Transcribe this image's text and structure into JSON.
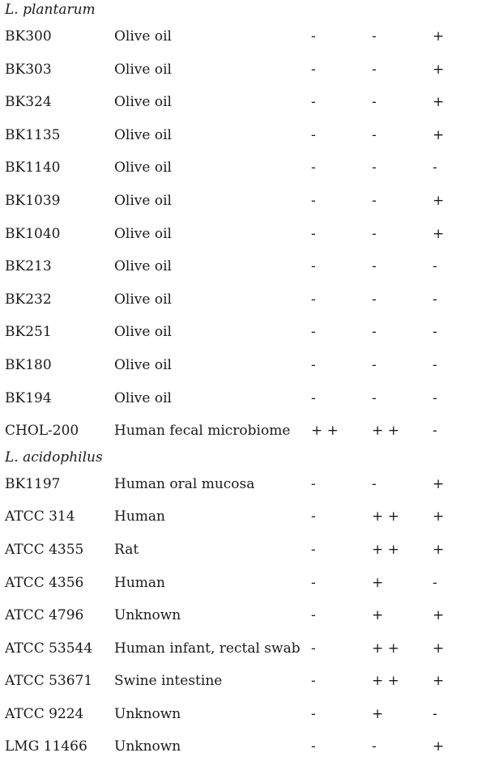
{
  "groups": [
    {
      "name": "L. plantarum",
      "rows": [
        {
          "strain": "BK300",
          "source": "Olive oil",
          "a": "-",
          "b": "-",
          "c": "+"
        },
        {
          "strain": "BK303",
          "source": "Olive oil",
          "a": "-",
          "b": "-",
          "c": "+"
        },
        {
          "strain": "BK324",
          "source": "Olive oil",
          "a": "-",
          "b": "-",
          "c": "+"
        },
        {
          "strain": "BK1135",
          "source": "Olive oil",
          "a": "-",
          "b": "-",
          "c": "+"
        },
        {
          "strain": "BK1140",
          "source": "Olive oil",
          "a": "-",
          "b": "-",
          "c": "-"
        },
        {
          "strain": "BK1039",
          "source": "Olive oil",
          "a": "-",
          "b": "-",
          "c": "+"
        },
        {
          "strain": "BK1040",
          "source": "Olive oil",
          "a": "-",
          "b": "-",
          "c": "+"
        },
        {
          "strain": "BK213",
          "source": "Olive oil",
          "a": "-",
          "b": "-",
          "c": "-"
        },
        {
          "strain": "BK232",
          "source": "Olive oil",
          "a": "-",
          "b": "-",
          "c": "-"
        },
        {
          "strain": "BK251",
          "source": "Olive oil",
          "a": "-",
          "b": "-",
          "c": "-"
        },
        {
          "strain": "BK180",
          "source": "Olive oil",
          "a": "-",
          "b": "-",
          "c": "-"
        },
        {
          "strain": "BK194",
          "source": "Olive oil",
          "a": "-",
          "b": "-",
          "c": "-"
        },
        {
          "strain": "CHOL-200",
          "source": "Human fecal microbiome",
          "a": "+ +",
          "b": "+ +",
          "c": "-"
        }
      ]
    },
    {
      "name": "L. acidophilus",
      "rows": [
        {
          "strain": "BK1197",
          "source": "Human oral mucosa",
          "a": "-",
          "b": "-",
          "c": "+"
        },
        {
          "strain": "ATCC 314",
          "source": "Human",
          "a": "-",
          "b": "+ +",
          "c": "+"
        },
        {
          "strain": "ATCC 4355",
          "source": "Rat",
          "a": "-",
          "b": "+ +",
          "c": "+"
        },
        {
          "strain": "ATCC 4356",
          "source": "Human",
          "a": "-",
          "b": "+",
          "c": "-"
        },
        {
          "strain": "ATCC 4796",
          "source": "Unknown",
          "a": "-",
          "b": "+",
          "c": "+"
        },
        {
          "strain": "ATCC 53544",
          "source": "Human infant, rectal swab",
          "a": "-",
          "b": "+ +",
          "c": "+"
        },
        {
          "strain": "ATCC 53671",
          "source": "Swine intestine",
          "a": "-",
          "b": "+ +",
          "c": "+"
        },
        {
          "strain": "ATCC 9224",
          "source": "Unknown",
          "a": "-",
          "b": "+",
          "c": "-"
        },
        {
          "strain": "LMG 11466",
          "source": "Unknown",
          "a": "-",
          "b": "-",
          "c": "+"
        }
      ]
    }
  ]
}
